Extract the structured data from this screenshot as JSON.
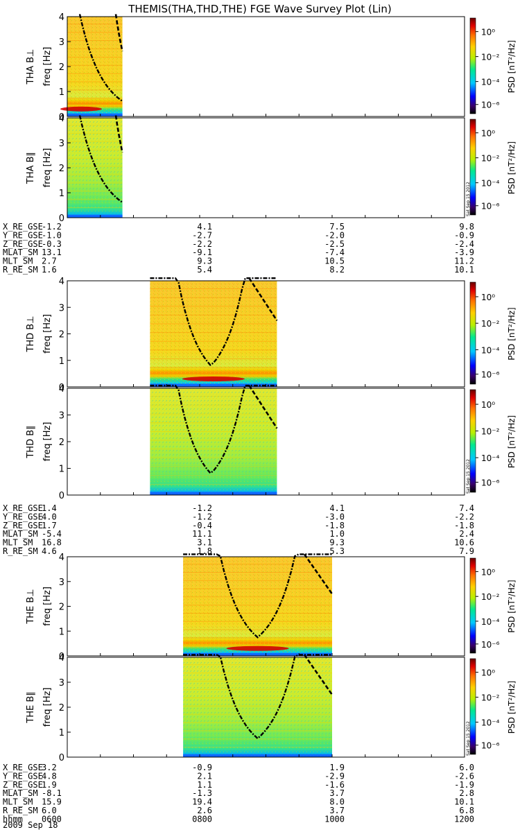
{
  "chart_data": {
    "type": "heatmap",
    "title": "THEMIS(THA,THD,THE) FGE Wave Survey Plot (Lin)",
    "date_label": "2009 Sep 18",
    "side_stamp": "Sat Sep 15 2012",
    "colorbar_label": "PSD [nT²/Hz]",
    "colorbar_ticks": [
      "10⁰",
      "10⁻²",
      "10⁻⁴",
      "10⁻⁶"
    ],
    "ylabel": "freq [Hz]",
    "ylim": [
      0,
      4
    ],
    "y_ticks": [
      "0",
      "1",
      "2",
      "3",
      "4"
    ],
    "x_time_labels": [
      "0600",
      "0800",
      "1000",
      "1200"
    ],
    "panels": [
      {
        "probe": "THA",
        "component": "THA B⊥",
        "data_start": "0600",
        "data_end": "0650"
      },
      {
        "probe": "THA",
        "component": "THA B∥",
        "data_start": "0600",
        "data_end": "0650"
      },
      {
        "probe": "THD",
        "component": "THD B⊥",
        "data_start": "0715",
        "data_end": "0910"
      },
      {
        "probe": "THD",
        "component": "THD B∥",
        "data_start": "0715",
        "data_end": "0910"
      },
      {
        "probe": "THE",
        "component": "THE B⊥",
        "data_start": "0745",
        "data_end": "1000"
      },
      {
        "probe": "THE",
        "component": "THE B∥",
        "data_start": "0745",
        "data_end": "1000"
      }
    ],
    "ephemeris": [
      {
        "probe": "THA",
        "rows": [
          {
            "label": "X_RE_GSE",
            "values": [
              "-1.2",
              "4.1",
              "7.5",
              "9.8"
            ]
          },
          {
            "label": "Y_RE_GSE",
            "values": [
              "-1.0",
              "-2.7",
              "-2.0",
              "-0.9"
            ]
          },
          {
            "label": "Z_RE_GSE",
            "values": [
              "-0.3",
              "-2.2",
              "-2.5",
              "-2.4"
            ]
          },
          {
            "label": "MLAT_SM",
            "values": [
              "13.1",
              "-9.1",
              "-7.4",
              "-3.9"
            ]
          },
          {
            "label": "MLT_SM",
            "values": [
              "2.7",
              "9.3",
              "10.5",
              "11.2"
            ]
          },
          {
            "label": "R_RE_SM",
            "values": [
              "1.6",
              "5.4",
              "8.2",
              "10.1"
            ]
          }
        ]
      },
      {
        "probe": "THD",
        "rows": [
          {
            "label": "X_RE_GSE",
            "values": [
              "1.4",
              "-1.2",
              "4.1",
              "7.4"
            ]
          },
          {
            "label": "Y_RE_GSE",
            "values": [
              "4.0",
              "-1.2",
              "-3.0",
              "-2.2"
            ]
          },
          {
            "label": "Z_RE_GSE",
            "values": [
              "1.7",
              "-0.4",
              "-1.8",
              "-1.8"
            ]
          },
          {
            "label": "MLAT_SM",
            "values": [
              "-5.4",
              "11.1",
              "1.0",
              "2.4"
            ]
          },
          {
            "label": "MLT_SM",
            "values": [
              "16.8",
              "3.1",
              "9.3",
              "10.6"
            ]
          },
          {
            "label": "R_RE_SM",
            "values": [
              "4.6",
              "1.8",
              "5.3",
              "7.9"
            ]
          }
        ]
      },
      {
        "probe": "THE",
        "rows": [
          {
            "label": "X_RE_GSE",
            "values": [
              "3.2",
              "-0.9",
              "1.9",
              "6.0"
            ]
          },
          {
            "label": "Y_RE_GSE",
            "values": [
              "4.8",
              "2.1",
              "-2.9",
              "-2.6"
            ]
          },
          {
            "label": "Z_RE_GSE",
            "values": [
              "1.9",
              "1.1",
              "-1.6",
              "-1.9"
            ]
          },
          {
            "label": "MLAT_SM",
            "values": [
              "-8.1",
              "-1.3",
              "3.7",
              "2.8"
            ]
          },
          {
            "label": "MLT_SM",
            "values": [
              "15.9",
              "19.4",
              "8.0",
              "10.1"
            ]
          },
          {
            "label": "R_RE_SM",
            "values": [
              "6.0",
              "2.6",
              "3.7",
              "6.8"
            ]
          }
        ]
      }
    ],
    "time_row_label": "hhmm"
  },
  "colors": {
    "colormap": [
      "#000000",
      "#4b0082",
      "#0000ff",
      "#00c8ff",
      "#00e890",
      "#b8f000",
      "#ffd000",
      "#ff7000",
      "#e00000",
      "#7a0000"
    ]
  }
}
